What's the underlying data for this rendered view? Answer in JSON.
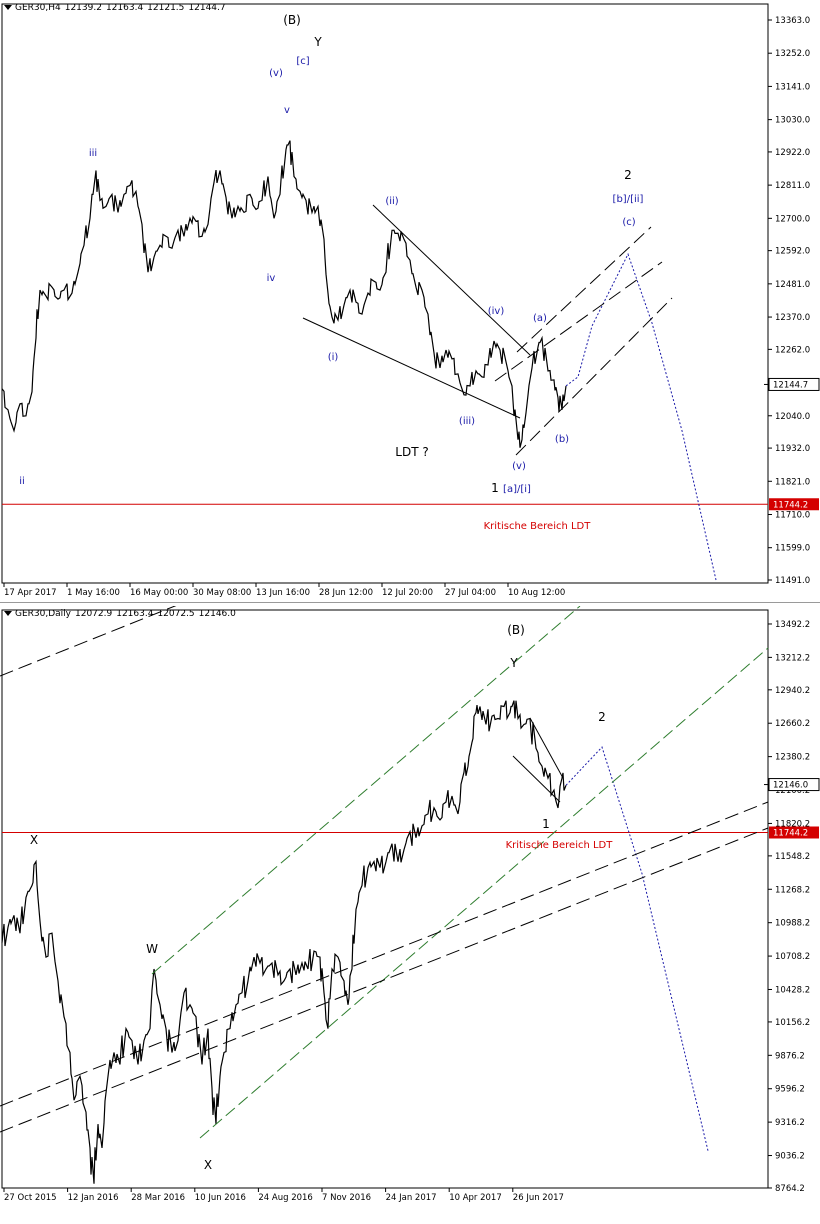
{
  "panels": [
    {
      "id": "h4",
      "header": {
        "symbol": "GER30,H4",
        "open": "12139.2",
        "high": "12163.4",
        "low": "12121.5",
        "close": "12144.7"
      },
      "yaxis": {
        "min": 11491,
        "max": 13363,
        "ticks": [
          "13363.0",
          "13252.0",
          "13141.0",
          "13030.0",
          "12922.0",
          "12811.0",
          "12700.0",
          "12592.0",
          "12481.0",
          "12370.0",
          "12262.0",
          "12151.0",
          "12040.0",
          "11932.0",
          "11821.0",
          "11710.0",
          "11599.0",
          "11491.0"
        ]
      },
      "price_label": "12144.7",
      "level_label": "11744.2",
      "xticks": [
        "17 Apr 2017",
        "1 May 16:00",
        "16 May 00:00",
        "30 May 08:00",
        "13 Jun 16:00",
        "28 Jun 12:00",
        "12 Jul 20:00",
        "27 Jul 04:00",
        "10 Aug 12:00"
      ],
      "annotations": {
        "B": "(B)",
        "Y": "Y",
        "c": "[c]",
        "v_par": "(v)",
        "v": "v",
        "iii_top": "iii",
        "iv": "iv",
        "ii": "ii",
        "ii_par": "(ii)",
        "i_par": "(i)",
        "iii_par": "(iii)",
        "iv_par": "(iv)",
        "v_low": "(v)",
        "a_par": "(a)",
        "b_par": "(b)",
        "ldt": "LDT ?",
        "one": "1",
        "a_i": "[a]/[i]",
        "two": "2",
        "b_ii": "[b]/[ii]",
        "c_par": "(c)",
        "kritisch": "Kritische Bereich LDT"
      }
    },
    {
      "id": "daily",
      "header": {
        "symbol": "GER30,Daily",
        "open": "12072.9",
        "high": "12163.4",
        "low": "12072.5",
        "close": "12146.0"
      },
      "yaxis": {
        "min": 8764,
        "max": 13492,
        "ticks": [
          "13492.2",
          "13212.2",
          "12940.2",
          "12660.2",
          "12380.2",
          "12100.2",
          "11820.2",
          "11548.2",
          "11268.2",
          "10988.2",
          "10708.2",
          "10428.2",
          "10156.2",
          "9876.2",
          "9596.2",
          "9316.2",
          "9036.2",
          "8764.2"
        ]
      },
      "price_label": "12146.0",
      "level_label": "11744.2",
      "xticks": [
        "27 Oct 2015",
        "12 Jan 2016",
        "28 Mar 2016",
        "10 Jun 2016",
        "24 Aug 2016",
        "7 Nov 2016",
        "24 Jan 2017",
        "10 Apr 2017",
        "26 Jun 2017"
      ],
      "annotations": {
        "B": "(B)",
        "Y": "Y",
        "two": "2",
        "one": "1",
        "X_top": "X",
        "W": "W",
        "X_bottom": "X",
        "kritisch": "Kritische Bereich LDT"
      }
    }
  ],
  "chart_data": [
    {
      "type": "line",
      "title": "GER30,H4",
      "ylim": [
        11491,
        13363
      ],
      "key_level": 11744.2,
      "last_price": 12144.7,
      "series": [
        {
          "x": [
            "17 Apr 2017",
            "1 May 16:00",
            "16 May 00:00",
            "30 May 08:00",
            "13 Jun 16:00",
            "28 Jun 12:00",
            "12 Jul 20:00",
            "27 Jul 04:00",
            "10 Aug 12:00"
          ],
          "values": [
            12040,
            12430,
            12720,
            12730,
            12760,
            12330,
            12650,
            12130,
            12190
          ]
        }
      ],
      "path_points": [
        [
          0,
          12130
        ],
        [
          6,
          12060
        ],
        [
          12,
          11990
        ],
        [
          18,
          12080
        ],
        [
          24,
          12040
        ],
        [
          30,
          12120
        ],
        [
          34,
          12300
        ],
        [
          38,
          12460
        ],
        [
          44,
          12440
        ],
        [
          50,
          12470
        ],
        [
          56,
          12430
        ],
        [
          62,
          12460
        ],
        [
          70,
          12450
        ],
        [
          76,
          12520
        ],
        [
          82,
          12610
        ],
        [
          88,
          12700
        ],
        [
          94,
          12860
        ],
        [
          98,
          12760
        ],
        [
          104,
          12740
        ],
        [
          110,
          12780
        ],
        [
          116,
          12720
        ],
        [
          122,
          12780
        ],
        [
          128,
          12810
        ],
        [
          134,
          12790
        ],
        [
          140,
          12680
        ],
        [
          146,
          12520
        ],
        [
          152,
          12570
        ],
        [
          158,
          12610
        ],
        [
          164,
          12640
        ],
        [
          170,
          12600
        ],
        [
          176,
          12660
        ],
        [
          182,
          12640
        ],
        [
          188,
          12700
        ],
        [
          194,
          12690
        ],
        [
          200,
          12640
        ],
        [
          206,
          12680
        ],
        [
          212,
          12820
        ],
        [
          218,
          12860
        ],
        [
          224,
          12770
        ],
        [
          230,
          12700
        ],
        [
          236,
          12740
        ],
        [
          242,
          12720
        ],
        [
          248,
          12780
        ],
        [
          254,
          12730
        ],
        [
          260,
          12760
        ],
        [
          266,
          12840
        ],
        [
          272,
          12700
        ],
        [
          278,
          12780
        ],
        [
          284,
          12930
        ],
        [
          288,
          12960
        ],
        [
          292,
          12840
        ],
        [
          298,
          12790
        ],
        [
          304,
          12760
        ],
        [
          310,
          12720
        ],
        [
          316,
          12740
        ],
        [
          322,
          12630
        ],
        [
          326,
          12450
        ],
        [
          330,
          12370
        ],
        [
          336,
          12360
        ],
        [
          342,
          12410
        ],
        [
          348,
          12460
        ],
        [
          354,
          12420
        ],
        [
          360,
          12380
        ],
        [
          366,
          12450
        ],
        [
          372,
          12490
        ],
        [
          378,
          12460
        ],
        [
          384,
          12520
        ],
        [
          390,
          12660
        ],
        [
          396,
          12650
        ],
        [
          402,
          12630
        ],
        [
          408,
          12560
        ],
        [
          414,
          12470
        ],
        [
          420,
          12460
        ],
        [
          426,
          12380
        ],
        [
          432,
          12250
        ],
        [
          438,
          12200
        ],
        [
          444,
          12260
        ],
        [
          450,
          12230
        ],
        [
          456,
          12180
        ],
        [
          462,
          12110
        ],
        [
          468,
          12140
        ],
        [
          474,
          12190
        ],
        [
          480,
          12170
        ],
        [
          486,
          12210
        ],
        [
          492,
          12290
        ],
        [
          498,
          12260
        ],
        [
          504,
          12220
        ],
        [
          510,
          12140
        ],
        [
          516,
          11960
        ],
        [
          520,
          11960
        ],
        [
          524,
          12050
        ],
        [
          530,
          12200
        ],
        [
          536,
          12270
        ],
        [
          540,
          12300
        ],
        [
          546,
          12190
        ],
        [
          552,
          12160
        ],
        [
          556,
          12100
        ],
        [
          560,
          12060
        ],
        [
          564,
          12140
        ]
      ],
      "projection": [
        [
          564,
          12140
        ],
        [
          576,
          12170
        ],
        [
          590,
          12340
        ],
        [
          626,
          12580
        ],
        [
          650,
          12350
        ],
        [
          680,
          11990
        ],
        [
          714,
          11491
        ]
      ]
    },
    {
      "type": "line",
      "title": "GER30,Daily",
      "ylim": [
        8764,
        13492
      ],
      "key_level": 11744.2,
      "last_price": 12146.0,
      "series": [
        {
          "x": [
            "27 Oct 2015",
            "12 Jan 2016",
            "28 Mar 2016",
            "10 Jun 2016",
            "24 Aug 2016",
            "7 Nov 2016",
            "24 Jan 2017",
            "10 Apr 2017",
            "26 Jun 2017"
          ],
          "values": [
            10800,
            9800,
            10000,
            9600,
            10600,
            10500,
            11600,
            12200,
            12700
          ]
        }
      ],
      "path_points": [
        [
          0,
          10820
        ],
        [
          6,
          10950
        ],
        [
          12,
          11050
        ],
        [
          18,
          10900
        ],
        [
          24,
          11200
        ],
        [
          30,
          11300
        ],
        [
          34,
          11500
        ],
        [
          38,
          11000
        ],
        [
          44,
          10700
        ],
        [
          50,
          10900
        ],
        [
          56,
          10500
        ],
        [
          62,
          10200
        ],
        [
          68,
          9900
        ],
        [
          72,
          9500
        ],
        [
          78,
          9700
        ],
        [
          84,
          9400
        ],
        [
          88,
          9100
        ],
        [
          92,
          8800
        ],
        [
          96,
          9300
        ],
        [
          100,
          9100
        ],
        [
          106,
          9700
        ],
        [
          112,
          9900
        ],
        [
          118,
          9800
        ],
        [
          124,
          10100
        ],
        [
          130,
          10000
        ],
        [
          136,
          9800
        ],
        [
          142,
          10000
        ],
        [
          148,
          10100
        ],
        [
          152,
          10600
        ],
        [
          158,
          10300
        ],
        [
          164,
          10100
        ],
        [
          170,
          9900
        ],
        [
          176,
          10000
        ],
        [
          182,
          10400
        ],
        [
          188,
          10300
        ],
        [
          194,
          10200
        ],
        [
          200,
          9800
        ],
        [
          206,
          10100
        ],
        [
          210,
          9600
        ],
        [
          214,
          9300
        ],
        [
          218,
          9700
        ],
        [
          222,
          9900
        ],
        [
          228,
          10100
        ],
        [
          234,
          10300
        ],
        [
          240,
          10400
        ],
        [
          246,
          10500
        ],
        [
          252,
          10700
        ],
        [
          258,
          10650
        ],
        [
          264,
          10600
        ],
        [
          270,
          10650
        ],
        [
          276,
          10550
        ],
        [
          282,
          10500
        ],
        [
          288,
          10600
        ],
        [
          294,
          10550
        ],
        [
          300,
          10650
        ],
        [
          306,
          10600
        ],
        [
          312,
          10750
        ],
        [
          318,
          10700
        ],
        [
          322,
          10400
        ],
        [
          326,
          10100
        ],
        [
          330,
          10600
        ],
        [
          336,
          10700
        ],
        [
          342,
          10500
        ],
        [
          346,
          10300
        ],
        [
          350,
          10600
        ],
        [
          354,
          11100
        ],
        [
          360,
          11300
        ],
        [
          366,
          11450
        ],
        [
          372,
          11500
        ],
        [
          378,
          11450
        ],
        [
          384,
          11500
        ],
        [
          390,
          11650
        ],
        [
          396,
          11500
        ],
        [
          402,
          11600
        ],
        [
          408,
          11750
        ],
        [
          414,
          11700
        ],
        [
          420,
          11800
        ],
        [
          426,
          11900
        ],
        [
          432,
          11950
        ],
        [
          438,
          11850
        ],
        [
          444,
          12000
        ],
        [
          450,
          12050
        ],
        [
          456,
          11900
        ],
        [
          462,
          12250
        ],
        [
          466,
          12300
        ],
        [
          470,
          12500
        ],
        [
          474,
          12750
        ],
        [
          478,
          12800
        ],
        [
          484,
          12650
        ],
        [
          490,
          12720
        ],
        [
          496,
          12700
        ],
        [
          502,
          12800
        ],
        [
          508,
          12750
        ],
        [
          512,
          12850
        ],
        [
          516,
          12700
        ],
        [
          522,
          12650
        ],
        [
          528,
          12700
        ],
        [
          534,
          12450
        ],
        [
          540,
          12300
        ],
        [
          546,
          12200
        ],
        [
          552,
          12100
        ],
        [
          556,
          11950
        ],
        [
          560,
          12200
        ],
        [
          564,
          12140
        ]
      ],
      "projection": [
        [
          564,
          12140
        ],
        [
          600,
          12460
        ],
        [
          640,
          11400
        ],
        [
          706,
          9076
        ]
      ]
    }
  ],
  "colors": {
    "price": "#000000",
    "wave_label": "#1a1aa8",
    "projection": "#1a1aa8",
    "key_line": "#d40000",
    "channel_green": "#2e7d2e",
    "axis": "#000000"
  }
}
